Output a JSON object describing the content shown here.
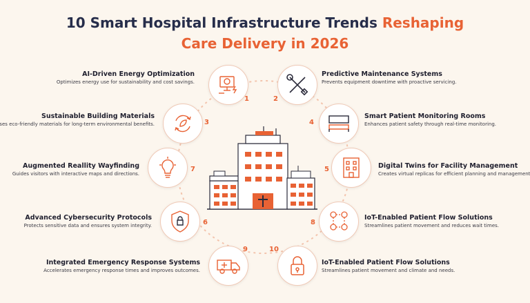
{
  "title": {
    "line1_main": "10 Smart Hospital Infrastructure Trends ",
    "line1_accent": "Reshaping",
    "line2": "Care Delivery in 2026"
  },
  "colors": {
    "accent": "#e86234",
    "navy": "#262d4a",
    "background": "#fcf6ee",
    "ring": "#f3c4ad"
  },
  "trends": [
    {
      "num": "1",
      "title": "AI-Driven Energy Optimization",
      "desc": "Optimizes energy use for sustainability and cost savings.",
      "icon": "ai-energy-monitor-icon"
    },
    {
      "num": "2",
      "title": "Predictive Maintenance Systems",
      "desc": "Prevents equipment downtime with proactive servicing.",
      "icon": "wrench-screwdriver-icon"
    },
    {
      "num": "3",
      "title": "Sustainable Building Materials",
      "desc": "Uses eco-friendly materials for long-term environmental benefits.",
      "icon": "recycle-leaf-icon"
    },
    {
      "num": "4",
      "title": "Smart Patient Monitoring Rooms",
      "desc": "Enhances patient safety through real-time monitoring.",
      "icon": "hospital-bed-icon"
    },
    {
      "num": "5",
      "title": "Digital Twins for Facility Management",
      "desc": "Creates virtual replicas for efficient planning and management.",
      "icon": "building-icon"
    },
    {
      "num": "6",
      "title": "Advanced Cybersecurity Protocols",
      "desc": "Protects sensitive data and ensures system integrity.",
      "icon": "shield-icon"
    },
    {
      "num": "7",
      "title": "Augmented Reallity Wayfinding",
      "desc": "Guides visitors with interactive maps and directions.",
      "icon": "lightbulb-icon"
    },
    {
      "num": "8",
      "title": "IoT-Enabled Patient Flow Solutions",
      "desc": "Streamlines patient movement and reduces wait times.",
      "icon": "patient-flow-network-icon"
    },
    {
      "num": "9",
      "title": "Integrated Emergency Response Systems",
      "desc": "Accelerates emergency response times and improves outcomes.",
      "icon": "ambulance-icon"
    },
    {
      "num": "10",
      "title": "IoT-Enabled Patient Flow Solutions",
      "desc": "Streamlines patient movement and climate and needs.",
      "icon": "padlock-icon"
    }
  ]
}
